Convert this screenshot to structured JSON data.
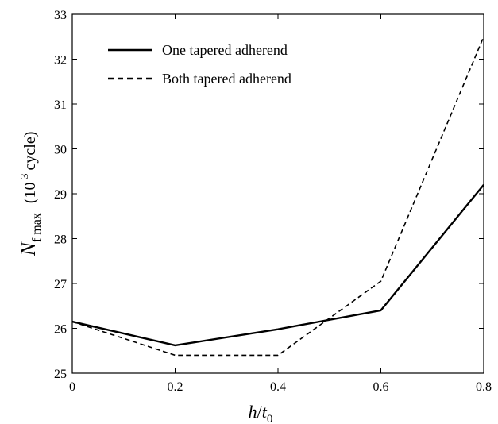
{
  "chart_data": {
    "type": "line",
    "x": [
      0,
      0.2,
      0.4,
      0.6,
      0.8
    ],
    "xlim": [
      0,
      0.8
    ],
    "ylim": [
      25,
      33
    ],
    "xticks": [
      "0",
      "0.2",
      "0.4",
      "0.6",
      "0.8"
    ],
    "yticks": [
      "25",
      "26",
      "27",
      "28",
      "29",
      "30",
      "31",
      "32",
      "33"
    ],
    "grid": false,
    "legend_position": "top-left",
    "xlabel": {
      "main": "h",
      "slash": "/",
      "t": "t",
      "sub": "0"
    },
    "ylabel": {
      "main": "N",
      "sub": "f max",
      "open": "(10",
      "sup": "3",
      "rest": "cycle)"
    },
    "series": [
      {
        "name": "One tapered adherend",
        "style": "solid",
        "color": "#000000",
        "values": [
          26.15,
          25.62,
          25.98,
          26.4,
          29.2
        ]
      },
      {
        "name": "Both tapered adherend",
        "style": "dashed",
        "color": "#000000",
        "values": [
          26.15,
          25.4,
          25.4,
          27.05,
          32.5
        ]
      }
    ]
  }
}
